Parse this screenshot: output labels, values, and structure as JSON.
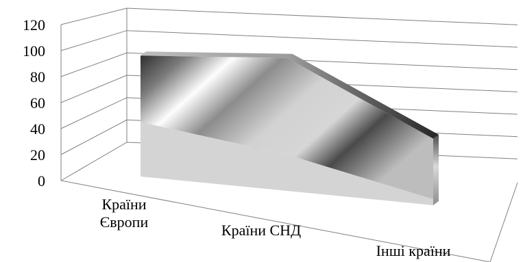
{
  "chart_data": {
    "type": "area",
    "style": "3d",
    "categories": [
      "Країни\nЄвропи",
      "Країни СНД",
      "Інші країни"
    ],
    "series": [
      {
        "values": [
          45,
          30,
          5
        ]
      },
      {
        "values": [
          100,
          110,
          55
        ]
      }
    ],
    "ylim": [
      0,
      120
    ],
    "yticks": [
      0,
      20,
      40,
      60,
      80,
      100,
      120
    ],
    "grid": true,
    "legend": "none",
    "colors": {
      "front_top": "#4a4a4a",
      "front_mid": "#d9d9d9",
      "front_light": "#ffffff",
      "back_band": "#d4d4d4",
      "side": "#9a9a9a",
      "top": "#303030"
    }
  }
}
